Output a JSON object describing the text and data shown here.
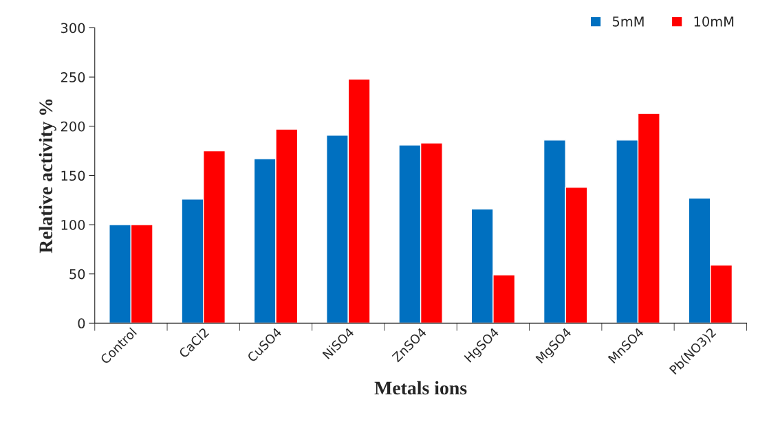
{
  "chart_data": {
    "type": "bar",
    "xlabel": "Metals ions",
    "ylabel": "Relative activity %",
    "categories": [
      "Control",
      "CaCl2",
      "CuSO4",
      "NiSO4",
      "ZnSO4",
      "HgSO4",
      "MgSO4",
      "MnSO4",
      "Pb(NO3)2"
    ],
    "series": [
      {
        "name": "5mM",
        "color": "#0070c0",
        "values": [
          100,
          126,
          167,
          191,
          181,
          116,
          186,
          186,
          127
        ]
      },
      {
        "name": "10mM",
        "color": "#ff0000",
        "values": [
          100,
          175,
          197,
          248,
          183,
          49,
          138,
          213,
          59
        ]
      }
    ],
    "ylim": [
      0,
      300
    ],
    "yticks": [
      0,
      50,
      100,
      150,
      200,
      250,
      300
    ],
    "grid": false,
    "legend": "top right"
  }
}
